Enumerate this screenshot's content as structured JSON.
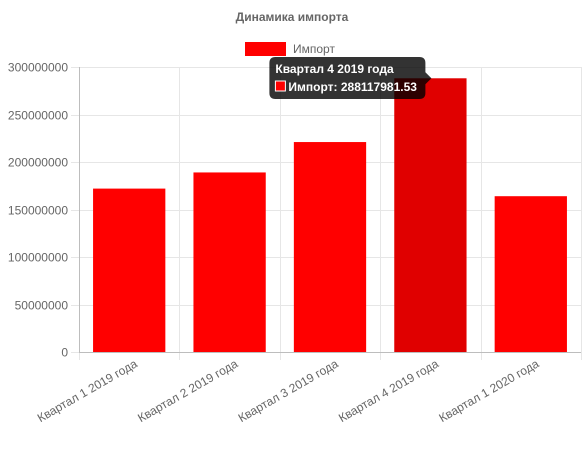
{
  "chart_data": {
    "type": "bar",
    "title": "Динамика импорта",
    "categories": [
      "Квартал 1 2019 года",
      "Квартал 2 2019 года",
      "Квартал 3 2019 года",
      "Квартал 4 2019 года",
      "Квартал 1 2020 года"
    ],
    "series": [
      {
        "name": "Импорт",
        "values": [
          172000000,
          189000000,
          221000000,
          288117981.53,
          164000000
        ]
      }
    ],
    "ylim": [
      0,
      300000000
    ],
    "yticks": [
      0,
      50000000,
      100000000,
      150000000,
      200000000,
      250000000,
      300000000
    ],
    "ytick_labels": [
      "0",
      "50000000",
      "100000000",
      "150000000",
      "200000000",
      "250000000",
      "300000000"
    ],
    "grid": true,
    "legend_position": "top",
    "colors": {
      "bar": "#ff0000",
      "bar_hover": "#e00000",
      "tooltip_bg": "#000000"
    },
    "tooltip": {
      "title": "Квартал 4 2019 года",
      "label": "Импорт: 288117981.53",
      "active_index": 3
    }
  }
}
